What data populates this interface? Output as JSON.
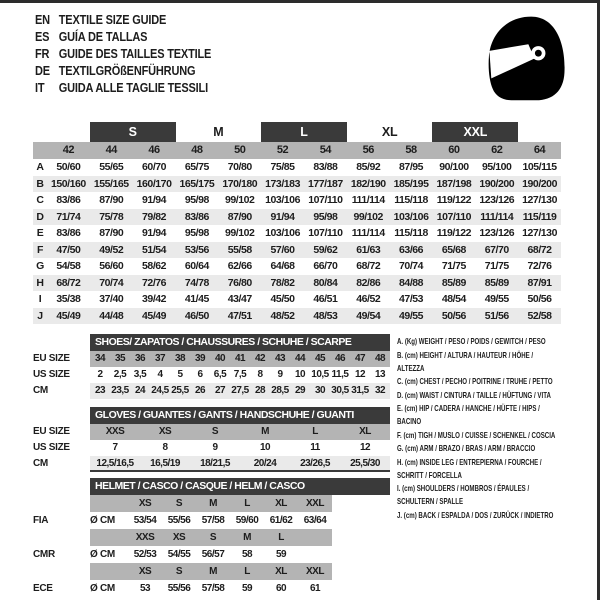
{
  "colors": {
    "dark_band": "#3a3a3a",
    "medium_gray": "#b4b4b4",
    "light_gray": "#eaeaea",
    "border": "#2c2c2c",
    "text": "#1d1d1d"
  },
  "languages": [
    {
      "code": "EN",
      "title": "TEXTILE SIZE GUIDE"
    },
    {
      "code": "ES",
      "title": "GUÍA DE TALLAS"
    },
    {
      "code": "FR",
      "title": "GUIDE DES TAILLES TEXTILE"
    },
    {
      "code": "DE",
      "title": "TEXTILGRÖßENFÜHRUNG"
    },
    {
      "code": "IT",
      "title": "GUIDA ALLE TAGLIE TESSILI"
    }
  ],
  "icons": {
    "helmet": "helmet-icon"
  },
  "size_table": {
    "bands": [
      {
        "label": "",
        "dark": false,
        "span": 2
      },
      {
        "label": "S",
        "dark": true,
        "span": 2
      },
      {
        "label": "M",
        "dark": false,
        "span": 2
      },
      {
        "label": "L",
        "dark": true,
        "span": 2
      },
      {
        "label": "XL",
        "dark": false,
        "span": 2
      },
      {
        "label": "XXL",
        "dark": true,
        "span": 2
      },
      {
        "label": "",
        "dark": false,
        "span": 1
      }
    ],
    "sizes": [
      "42",
      "44",
      "46",
      "48",
      "50",
      "52",
      "54",
      "56",
      "58",
      "60",
      "62",
      "64"
    ],
    "rows": [
      {
        "letter": "A",
        "values": [
          "50/60",
          "55/65",
          "60/70",
          "65/75",
          "70/80",
          "75/85",
          "83/88",
          "85/92",
          "87/95",
          "90/100",
          "95/100",
          "105/115"
        ]
      },
      {
        "letter": "B",
        "values": [
          "150/160",
          "155/165",
          "160/170",
          "165/175",
          "170/180",
          "173/183",
          "177/187",
          "182/190",
          "185/195",
          "187/198",
          "190/200",
          "190/200"
        ]
      },
      {
        "letter": "C",
        "values": [
          "83/86",
          "87/90",
          "91/94",
          "95/98",
          "99/102",
          "103/106",
          "107/110",
          "111/114",
          "115/118",
          "119/122",
          "123/126",
          "127/130"
        ]
      },
      {
        "letter": "D",
        "values": [
          "71/74",
          "75/78",
          "79/82",
          "83/86",
          "87/90",
          "91/94",
          "95/98",
          "99/102",
          "103/106",
          "107/110",
          "111/114",
          "115/119"
        ]
      },
      {
        "letter": "E",
        "values": [
          "83/86",
          "87/90",
          "91/94",
          "95/98",
          "99/102",
          "103/106",
          "107/110",
          "111/114",
          "115/118",
          "119/122",
          "123/126",
          "127/130"
        ]
      },
      {
        "letter": "F",
        "values": [
          "47/50",
          "49/52",
          "51/54",
          "53/56",
          "55/58",
          "57/60",
          "59/62",
          "61/63",
          "63/66",
          "65/68",
          "67/70",
          "68/72"
        ]
      },
      {
        "letter": "G",
        "values": [
          "54/58",
          "56/60",
          "58/62",
          "60/64",
          "62/66",
          "64/68",
          "66/70",
          "68/72",
          "70/74",
          "71/75",
          "71/75",
          "72/76"
        ]
      },
      {
        "letter": "H",
        "values": [
          "68/72",
          "70/74",
          "72/76",
          "74/78",
          "76/80",
          "78/82",
          "80/84",
          "82/86",
          "84/88",
          "85/89",
          "85/89",
          "87/91"
        ]
      },
      {
        "letter": "I",
        "values": [
          "35/38",
          "37/40",
          "39/42",
          "41/45",
          "43/47",
          "45/50",
          "46/51",
          "46/52",
          "47/53",
          "48/54",
          "49/55",
          "50/56"
        ]
      },
      {
        "letter": "J",
        "values": [
          "45/49",
          "44/48",
          "45/49",
          "46/50",
          "47/51",
          "48/52",
          "48/53",
          "49/54",
          "49/55",
          "50/56",
          "51/56",
          "52/58"
        ]
      }
    ]
  },
  "shoes": {
    "title": "SHOES/ ZAPATOS / CHAUSSURES / SCHUHE / SCARPE",
    "rows": [
      {
        "label": "EU SIZE",
        "shade": "medium",
        "values": [
          "34",
          "35",
          "36",
          "37",
          "38",
          "39",
          "40",
          "41",
          "42",
          "43",
          "44",
          "45",
          "46",
          "47",
          "48"
        ]
      },
      {
        "label": "US SIZE",
        "shade": "white",
        "values": [
          "2",
          "2,5",
          "3,5",
          "4",
          "5",
          "6",
          "6,5",
          "7,5",
          "8",
          "9",
          "10",
          "10,5",
          "11,5",
          "12",
          "13"
        ]
      },
      {
        "label": "CM",
        "shade": "light",
        "values": [
          "23",
          "23,5",
          "24",
          "24,5",
          "25,5",
          "26",
          "27",
          "27,5",
          "28",
          "28,5",
          "29",
          "30",
          "30,5",
          "31,5",
          "32"
        ]
      }
    ]
  },
  "gloves": {
    "title": "GLOVES / GUANTES / GANTS / HANDSCHUHE / GUANTI",
    "rows": [
      {
        "label": "EU SIZE",
        "shade": "medium",
        "values": [
          "XXS",
          "XS",
          "S",
          "M",
          "L",
          "XL"
        ]
      },
      {
        "label": "US SIZE",
        "shade": "white",
        "values": [
          "7",
          "8",
          "9",
          "10",
          "11",
          "12"
        ]
      },
      {
        "label": "CM",
        "shade": "light",
        "values": [
          "12,5/16,5",
          "16,5/19",
          "18/21,5",
          "20/24",
          "23/26,5",
          "25,5/30"
        ]
      }
    ]
  },
  "helmet": {
    "title": "HELMET / CASCO / CASQUE / HELM / CASCO",
    "rows": [
      {
        "label": "",
        "unit": "",
        "shade": "medium",
        "values": [
          "XS",
          "S",
          "M",
          "L",
          "XL",
          "XXL"
        ]
      },
      {
        "label": "FIA",
        "unit": "Ø CM",
        "shade": "white",
        "values": [
          "53/54",
          "55/56",
          "57/58",
          "59/60",
          "61/62",
          "63/64"
        ]
      },
      {
        "label": "",
        "unit": "",
        "shade": "medium",
        "values": [
          "XXS",
          "XS",
          "S",
          "M",
          "L",
          ""
        ]
      },
      {
        "label": "CMR",
        "unit": "Ø CM",
        "shade": "white",
        "values": [
          "52/53",
          "54/55",
          "56/57",
          "58",
          "59",
          ""
        ]
      },
      {
        "label": "",
        "unit": "",
        "shade": "medium",
        "values": [
          "XS",
          "S",
          "M",
          "L",
          "XL",
          "XXL"
        ]
      },
      {
        "label": "ECE",
        "unit": "Ø CM",
        "shade": "white",
        "values": [
          "53",
          "55/56",
          "57/58",
          "59",
          "60",
          "61"
        ]
      }
    ]
  },
  "legend": [
    "A. (Kg) WEIGHT / PESO / POIDS / GEWITCH / PESO",
    "B. (cm) HEIGHT / ALTURA / HAUTEUR / HÖHE / ALTEZZA",
    "C. (cm) CHEST / PECHO / POITRINE / TRUHE / PETTO",
    "D. (cm) WAIST / CINTURA / TAILLE / HÜFTUNG / VITA",
    "E. (cm) HIP / CADERA / HANCHE / HÜFTE / HIPS /  BACINO",
    "F.  (cm) TIGH / MUSLO / CUISSE / SCHENKEL / COSCIA",
    "G. (cm) ARM  / BRAZO / BRAS / ARM / BRACCIO",
    "H. (cm) INSIDE LEG / ENTREPIERNA / FOURCHE / SCHRITT / FORCELLA",
    "I.  (cm) SHOULDERS / HOMBROS / ÉPAULES / SCHULTERN / SPALLE",
    "J. (cm) BACK / ESPALDA / DOS / ZURÜCK / INDIETRO"
  ]
}
